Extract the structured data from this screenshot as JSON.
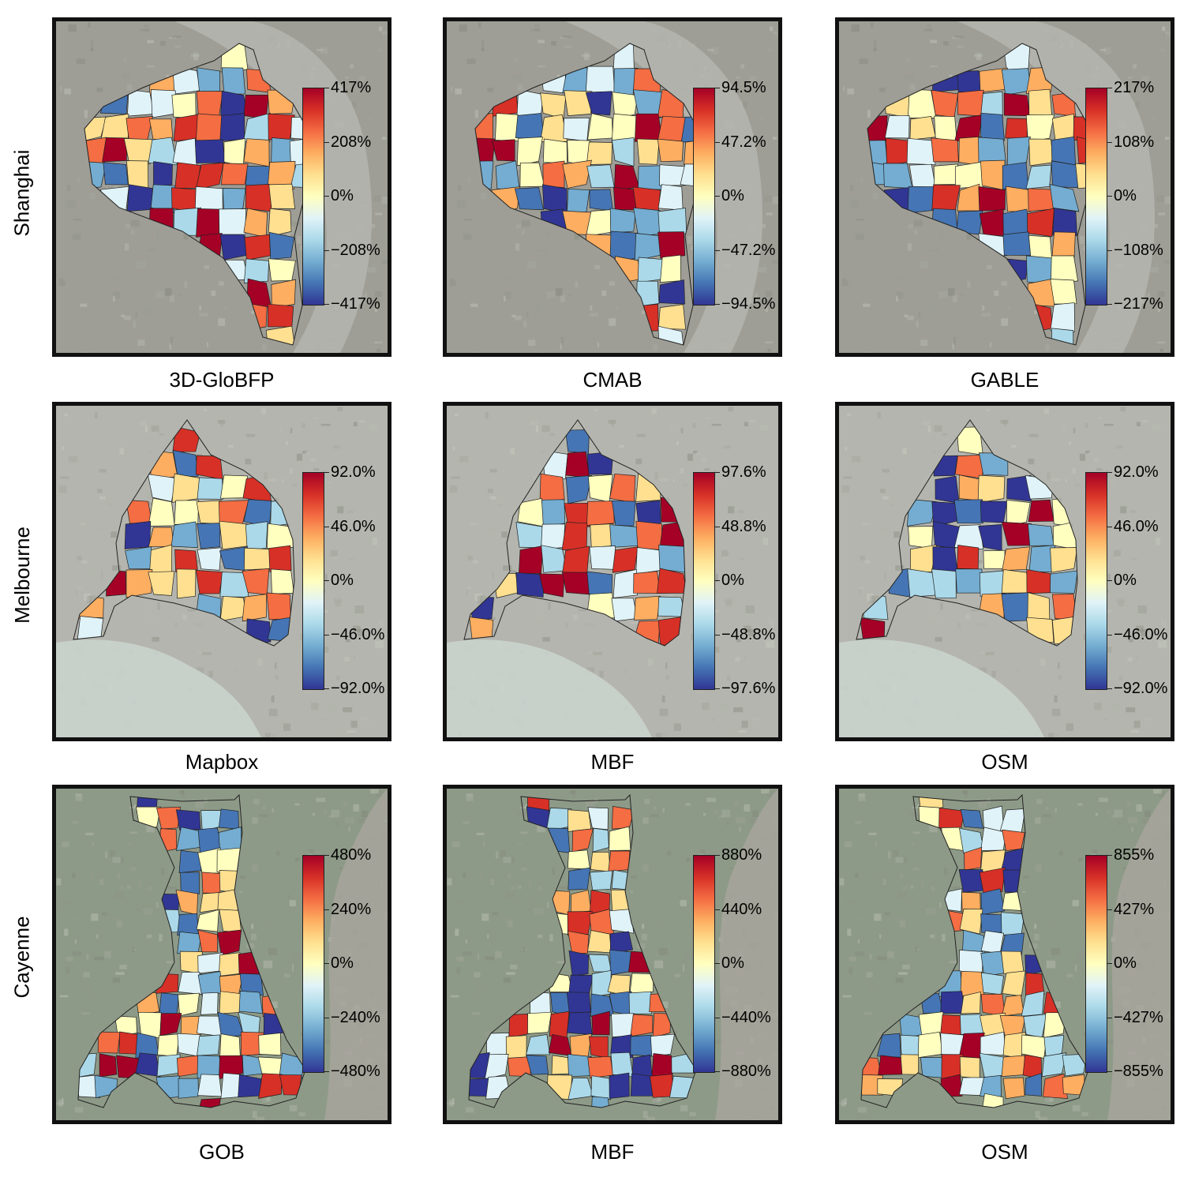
{
  "rows": [
    {
      "label": "Shanghai",
      "panels": [
        {
          "caption": "3D-GloBFP",
          "ticks": [
            "417%",
            "208%",
            "0%",
            "−208%",
            "−417%"
          ]
        },
        {
          "caption": "CMAB",
          "ticks": [
            "94.5%",
            "47.2%",
            "0%",
            "−47.2%",
            "−94.5%"
          ]
        },
        {
          "caption": "GABLE",
          "ticks": [
            "217%",
            "108%",
            "0%",
            "−108%",
            "−217%"
          ]
        }
      ]
    },
    {
      "label": "Melbourne",
      "panels": [
        {
          "caption": "Mapbox",
          "ticks": [
            "92.0%",
            "46.0%",
            "0%",
            "−46.0%",
            "−92.0%"
          ]
        },
        {
          "caption": "MBF",
          "ticks": [
            "97.6%",
            "48.8%",
            "0%",
            "−48.8%",
            "−97.6%"
          ]
        },
        {
          "caption": "OSM",
          "ticks": [
            "92.0%",
            "46.0%",
            "0%",
            "−46.0%",
            "−92.0%"
          ]
        }
      ]
    },
    {
      "label": "Cayenne",
      "panels": [
        {
          "caption": "GOB",
          "ticks": [
            "480%",
            "240%",
            "0%",
            "−240%",
            "−480%"
          ]
        },
        {
          "caption": "MBF",
          "ticks": [
            "880%",
            "440%",
            "0%",
            "−440%",
            "−880%"
          ]
        },
        {
          "caption": "OSM",
          "ticks": [
            "855%",
            "427%",
            "0%",
            "−427%",
            "−855%"
          ]
        }
      ]
    }
  ],
  "colormap": [
    "#313695",
    "#4575b4",
    "#74add1",
    "#abd9e9",
    "#e0f3f8",
    "#ffffbf",
    "#fee090",
    "#fdae61",
    "#f46d43",
    "#d73027",
    "#a50026"
  ],
  "basemap_colors": {
    "Shanghai": "#9e9e96",
    "Melbourne": "#b4b5ae",
    "Cayenne": "#8e9a88"
  }
}
